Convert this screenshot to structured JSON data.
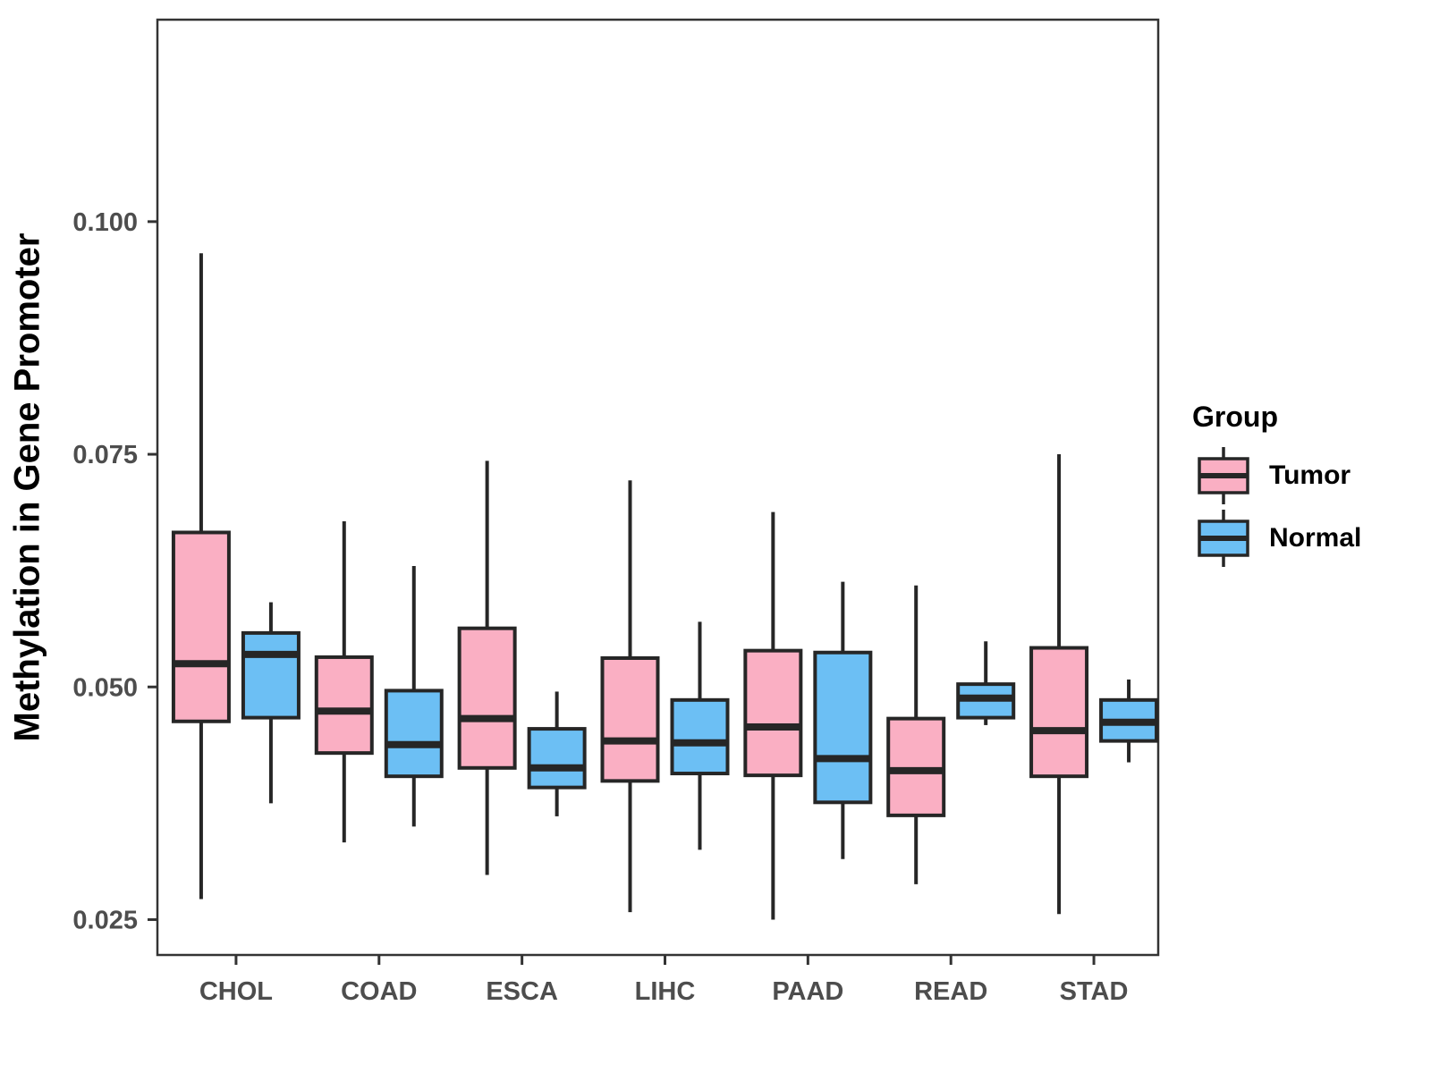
{
  "chart_data": {
    "type": "grouped_boxplot",
    "ylabel": "Methylation in Gene Promoter",
    "categories": [
      "CHOL",
      "COAD",
      "ESCA",
      "LIHC",
      "PAAD",
      "READ",
      "STAD"
    ],
    "y_ticks": [
      0.1,
      0.075,
      0.05,
      0.025
    ],
    "y_tick_labels": [
      "0.100",
      "0.075",
      "0.050",
      "0.025"
    ],
    "ylim": [
      0.0212,
      0.1217
    ],
    "grid": "off",
    "legend": {
      "title": "Group",
      "position": "right",
      "entries": [
        {
          "label": "Tumor",
          "color": "#FAAFC3"
        },
        {
          "label": "Normal",
          "color": "#6CBFF4"
        }
      ]
    },
    "colors": {
      "tumor_fill": "#FAAFC3",
      "normal_fill": "#6CBFF4",
      "box_outline": "#262626",
      "frame": "#333333",
      "axis_text": "#4D4D4D",
      "background": "#FFFFFF"
    },
    "series": [
      {
        "name": "Tumor",
        "color": "#FAAFC3",
        "boxes": [
          {
            "category": "CHOL",
            "low": 0.0272,
            "q1": 0.0463,
            "median": 0.0525,
            "q3": 0.0666,
            "high": 0.0966
          },
          {
            "category": "COAD",
            "low": 0.0333,
            "q1": 0.0429,
            "median": 0.0474,
            "q3": 0.0532,
            "high": 0.0678
          },
          {
            "category": "ESCA",
            "low": 0.0298,
            "q1": 0.0413,
            "median": 0.0466,
            "q3": 0.0563,
            "high": 0.0743
          },
          {
            "category": "LIHC",
            "low": 0.0258,
            "q1": 0.0399,
            "median": 0.0442,
            "q3": 0.0531,
            "high": 0.0722
          },
          {
            "category": "PAAD",
            "low": 0.025,
            "q1": 0.0405,
            "median": 0.0457,
            "q3": 0.0539,
            "high": 0.0688
          },
          {
            "category": "READ",
            "low": 0.0288,
            "q1": 0.0362,
            "median": 0.041,
            "q3": 0.0466,
            "high": 0.0609
          },
          {
            "category": "STAD",
            "low": 0.0256,
            "q1": 0.0404,
            "median": 0.0453,
            "q3": 0.0542,
            "high": 0.075
          }
        ]
      },
      {
        "name": "Normal",
        "color": "#6CBFF4",
        "boxes": [
          {
            "category": "CHOL",
            "low": 0.0375,
            "q1": 0.0467,
            "median": 0.0535,
            "q3": 0.0558,
            "high": 0.0591
          },
          {
            "category": "COAD",
            "low": 0.035,
            "q1": 0.0404,
            "median": 0.0438,
            "q3": 0.0496,
            "high": 0.063
          },
          {
            "category": "ESCA",
            "low": 0.0361,
            "q1": 0.0392,
            "median": 0.0413,
            "q3": 0.0455,
            "high": 0.0495
          },
          {
            "category": "LIHC",
            "low": 0.0325,
            "q1": 0.0407,
            "median": 0.044,
            "q3": 0.0486,
            "high": 0.057
          },
          {
            "category": "PAAD",
            "low": 0.0315,
            "q1": 0.0376,
            "median": 0.0423,
            "q3": 0.0537,
            "high": 0.0613
          },
          {
            "category": "READ",
            "low": 0.0459,
            "q1": 0.0467,
            "median": 0.0488,
            "q3": 0.0503,
            "high": 0.0549
          },
          {
            "category": "STAD",
            "low": 0.0419,
            "q1": 0.0442,
            "median": 0.0462,
            "q3": 0.0486,
            "high": 0.0508
          }
        ]
      }
    ]
  }
}
